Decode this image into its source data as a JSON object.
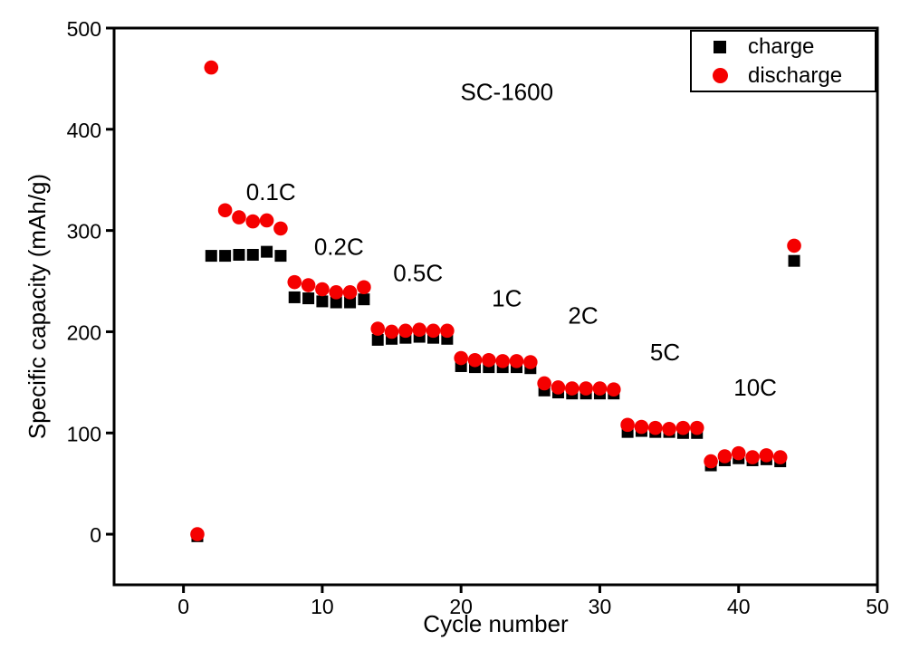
{
  "chart_data": {
    "type": "scatter",
    "title": "SC-1600",
    "title_anchor": {
      "x": 23.3,
      "y": 437
    },
    "xlabel": "Cycle number",
    "ylabel": "Specific capacity (mAh/g)",
    "xlim": [
      -5,
      50
    ],
    "ylim": [
      -50,
      500
    ],
    "xticks": [
      0,
      10,
      20,
      30,
      40,
      50
    ],
    "yticks": [
      0,
      100,
      200,
      300,
      400,
      500
    ],
    "grid": false,
    "legend_position": "top-right",
    "legend": [
      {
        "label": "charge",
        "marker": "square",
        "color": "#000000"
      },
      {
        "label": "discharge",
        "marker": "circle",
        "color": "#f50000"
      }
    ],
    "series": [
      {
        "name": "charge",
        "marker": "square",
        "color": "#000000",
        "x": [
          1,
          2,
          3,
          4,
          5,
          6,
          7,
          8,
          9,
          10,
          11,
          12,
          13,
          14,
          15,
          16,
          17,
          18,
          19,
          20,
          21,
          22,
          23,
          24,
          25,
          26,
          27,
          28,
          29,
          30,
          31,
          32,
          33,
          34,
          35,
          36,
          37,
          38,
          39,
          40,
          41,
          42,
          43,
          44
        ],
        "y": [
          -2,
          275,
          275,
          276,
          276,
          279,
          275,
          234,
          233,
          230,
          229,
          229,
          232,
          192,
          193,
          194,
          195,
          194,
          193,
          166,
          165,
          165,
          165,
          165,
          164,
          142,
          140,
          139,
          139,
          139,
          139,
          101,
          102,
          101,
          101,
          100,
          100,
          68,
          73,
          75,
          73,
          74,
          72,
          270
        ]
      },
      {
        "name": "discharge",
        "marker": "circle",
        "color": "#f50000",
        "x": [
          1,
          2,
          3,
          4,
          5,
          6,
          7,
          8,
          9,
          10,
          11,
          12,
          13,
          14,
          15,
          16,
          17,
          18,
          19,
          20,
          21,
          22,
          23,
          24,
          25,
          26,
          27,
          28,
          29,
          30,
          31,
          32,
          33,
          34,
          35,
          36,
          37,
          38,
          39,
          40,
          41,
          42,
          43,
          44
        ],
        "y": [
          0,
          461,
          320,
          313,
          309,
          310,
          302,
          249,
          246,
          242,
          239,
          239,
          244,
          203,
          200,
          201,
          202,
          201,
          201,
          174,
          172,
          172,
          171,
          171,
          170,
          149,
          145,
          144,
          144,
          144,
          143,
          108,
          106,
          105,
          104,
          105,
          105,
          72,
          77,
          80,
          76,
          78,
          76,
          285
        ]
      }
    ],
    "annotations": [
      {
        "text": "0.1C",
        "x": 6.3,
        "y": 338
      },
      {
        "text": "0.2C",
        "x": 11.2,
        "y": 284
      },
      {
        "text": "0.5C",
        "x": 16.9,
        "y": 258
      },
      {
        "text": "1C",
        "x": 23.3,
        "y": 233
      },
      {
        "text": "2C",
        "x": 28.8,
        "y": 216
      },
      {
        "text": "5C",
        "x": 34.7,
        "y": 180
      },
      {
        "text": "10C",
        "x": 41.2,
        "y": 145
      }
    ]
  }
}
